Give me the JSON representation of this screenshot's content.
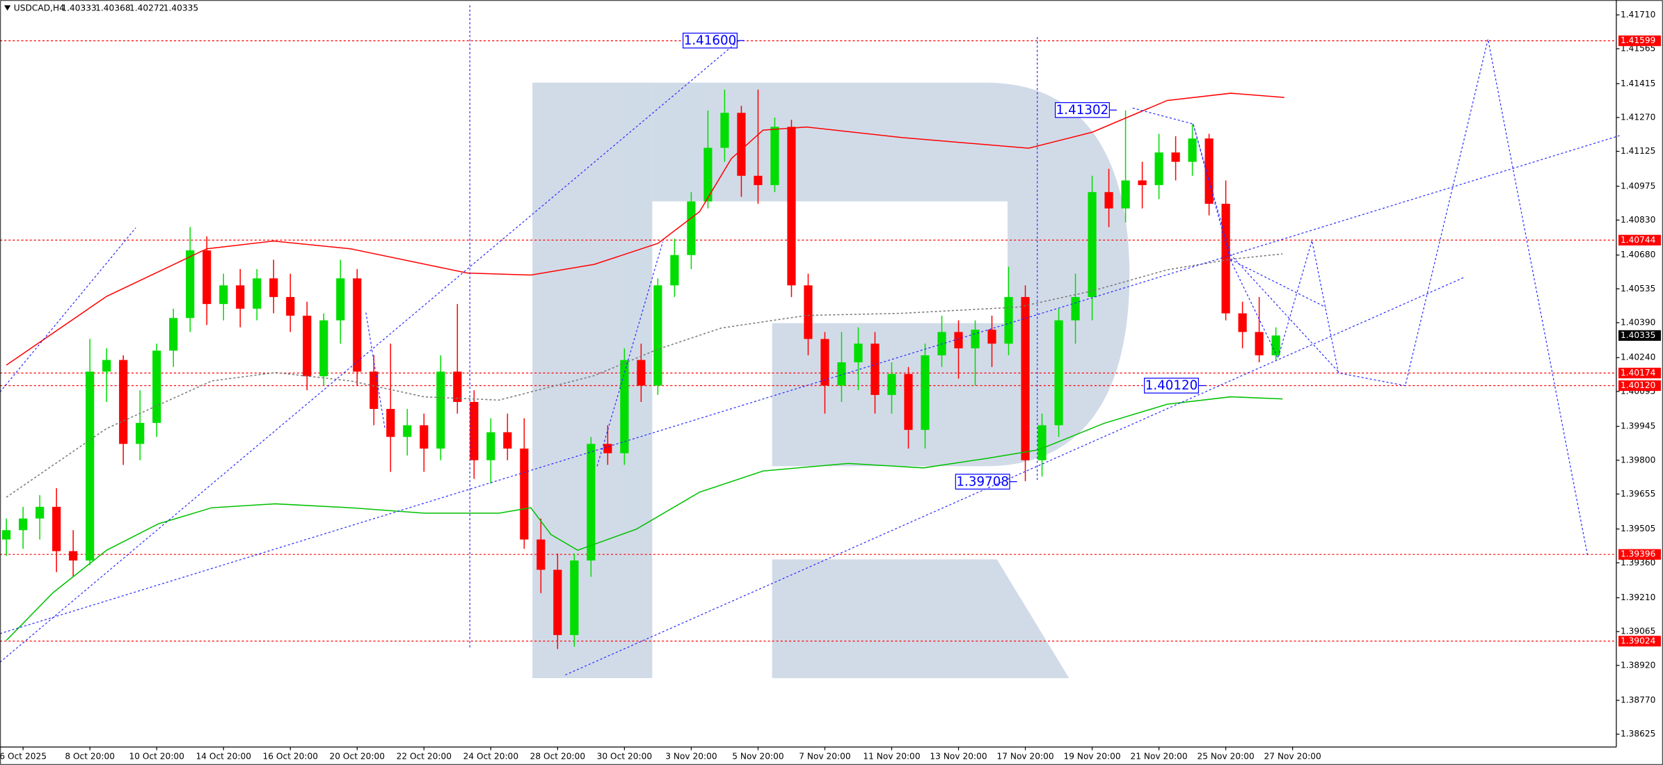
{
  "chart_data": {
    "type": "candlestick",
    "title": "USDCAD,H4",
    "ohlc": [
      1.40333,
      1.40368,
      1.40272,
      1.40335
    ],
    "up_color": "#00dd00",
    "down_color": "#ff0000",
    "ylim": [
      1.3857,
      1.41774
    ],
    "yticks": [
      {
        "value": 1.4171,
        "label": "1.41710"
      },
      1.41565,
      1.41415,
      {
        "value": 1.4127,
        "label": "1.41270"
      },
      1.41125,
      1.40975,
      {
        "value": 1.4083,
        "label": "1.40830"
      },
      {
        "value": 1.4068,
        "label": "1.40680"
      },
      1.40535,
      {
        "value": 1.4039,
        "label": "1.40390"
      },
      {
        "value": 1.4024,
        "label": "1.40240"
      },
      1.40095,
      1.39945,
      {
        "value": 1.398,
        "label": "1.39800"
      },
      1.39655,
      1.39505,
      {
        "value": 1.3936,
        "label": "1.39360"
      },
      {
        "value": 1.3921,
        "label": "1.39210"
      },
      1.39065,
      {
        "value": 1.3892,
        "label": "1.38920"
      },
      {
        "value": 1.3877,
        "label": "1.38770"
      },
      1.38625
    ],
    "xticks": [
      {
        "value": 1,
        "label": "6 Oct 2025"
      },
      {
        "value": 5,
        "label": "8 Oct 20:00"
      },
      {
        "value": 9,
        "label": "10 Oct 20:00"
      },
      {
        "value": 13,
        "label": "14 Oct 20:00"
      },
      {
        "value": 17,
        "label": "16 Oct 20:00"
      },
      {
        "value": 21,
        "label": "20 Oct 20:00"
      },
      {
        "value": 25,
        "label": "22 Oct 20:00"
      },
      {
        "value": 29,
        "label": "24 Oct 20:00"
      },
      {
        "value": 33,
        "label": "28 Oct 20:00"
      },
      {
        "value": 37,
        "label": "30 Oct 20:00"
      },
      {
        "value": 41,
        "label": "3 Nov 20:00"
      },
      {
        "value": 45,
        "label": "5 Nov 20:00"
      },
      {
        "value": 49,
        "label": "7 Nov 20:00"
      },
      {
        "value": 53,
        "label": "11 Nov 20:00"
      },
      {
        "value": 57,
        "label": "13 Nov 20:00"
      },
      {
        "value": 61,
        "label": "17 Nov 20:00"
      },
      {
        "value": 65,
        "label": "19 Nov 20:00"
      },
      {
        "value": 69,
        "label": "21 Nov 20:00"
      },
      {
        "value": 73,
        "label": "25 Nov 20:00"
      },
      {
        "value": 77,
        "label": "27 Nov 20:00"
      }
    ],
    "candles": [
      [
        1.3946,
        1.3955,
        1.3939,
        1.395
      ],
      [
        1.395,
        1.396,
        1.3942,
        1.3955
      ],
      [
        1.3955,
        1.3965,
        1.3946,
        1.396
      ],
      [
        1.396,
        1.3968,
        1.3932,
        1.3941
      ],
      [
        1.3941,
        1.395,
        1.393,
        1.3937
      ],
      [
        1.3937,
        1.4032,
        1.3935,
        1.4018
      ],
      [
        1.4018,
        1.4028,
        1.4005,
        1.4023
      ],
      [
        1.4023,
        1.4025,
        1.3978,
        1.3987
      ],
      [
        1.3987,
        1.401,
        1.398,
        1.3996
      ],
      [
        1.3996,
        1.403,
        1.399,
        1.4027
      ],
      [
        1.4027,
        1.4045,
        1.402,
        1.4041
      ],
      [
        1.4041,
        1.408,
        1.4035,
        1.407
      ],
      [
        1.407,
        1.4076,
        1.4038,
        1.4047
      ],
      [
        1.4047,
        1.406,
        1.404,
        1.4055
      ],
      [
        1.4055,
        1.4062,
        1.4037,
        1.4045
      ],
      [
        1.4045,
        1.4062,
        1.404,
        1.4058
      ],
      [
        1.4058,
        1.4066,
        1.4043,
        1.405
      ],
      [
        1.405,
        1.406,
        1.4035,
        1.4042
      ],
      [
        1.4042,
        1.4048,
        1.401,
        1.4016
      ],
      [
        1.4016,
        1.4043,
        1.4012,
        1.404
      ],
      [
        1.404,
        1.4066,
        1.403,
        1.4058
      ],
      [
        1.4058,
        1.4062,
        1.4012,
        1.4018
      ],
      [
        1.4018,
        1.4025,
        1.3995,
        1.4002
      ],
      [
        1.4002,
        1.403,
        1.3975,
        1.399
      ],
      [
        1.399,
        1.4002,
        1.3982,
        1.3995
      ],
      [
        1.3995,
        1.4,
        1.3975,
        1.3985
      ],
      [
        1.3985,
        1.4025,
        1.398,
        1.4018
      ],
      [
        1.4018,
        1.4047,
        1.4,
        1.4005
      ],
      [
        1.4005,
        1.401,
        1.3972,
        1.398
      ],
      [
        1.398,
        1.3998,
        1.397,
        1.3992
      ],
      [
        1.3992,
        1.4,
        1.398,
        1.3985
      ],
      [
        1.3985,
        1.3998,
        1.3942,
        1.3946
      ],
      [
        1.3946,
        1.3955,
        1.3923,
        1.3933
      ],
      [
        1.3933,
        1.394,
        1.3899,
        1.3905
      ],
      [
        1.3905,
        1.394,
        1.39,
        1.3937
      ],
      [
        1.3937,
        1.399,
        1.393,
        1.3987
      ],
      [
        1.3987,
        1.3995,
        1.3978,
        1.3983
      ],
      [
        1.3983,
        1.4028,
        1.3978,
        1.4023
      ],
      [
        1.4023,
        1.403,
        1.4005,
        1.4012
      ],
      [
        1.4012,
        1.4058,
        1.4008,
        1.4055
      ],
      [
        1.4055,
        1.4075,
        1.405,
        1.4068
      ],
      [
        1.4068,
        1.4095,
        1.4062,
        1.4091
      ],
      [
        1.4091,
        1.413,
        1.4088,
        1.4114
      ],
      [
        1.4114,
        1.4139,
        1.4108,
        1.4129
      ],
      [
        1.4129,
        1.4132,
        1.4093,
        1.4102
      ],
      [
        1.4102,
        1.4139,
        1.409,
        1.4098
      ],
      [
        1.4098,
        1.4127,
        1.4095,
        1.4123
      ],
      [
        1.4123,
        1.4126,
        1.405,
        1.4055
      ],
      [
        1.4055,
        1.406,
        1.4025,
        1.4032
      ],
      [
        1.4032,
        1.4035,
        1.4,
        1.4012
      ],
      [
        1.4012,
        1.4035,
        1.4005,
        1.4022
      ],
      [
        1.4022,
        1.4037,
        1.401,
        1.403
      ],
      [
        1.403,
        1.4035,
        1.4,
        1.4008
      ],
      [
        1.4008,
        1.4022,
        1.4,
        1.4017
      ],
      [
        1.4017,
        1.402,
        1.3985,
        1.3993
      ],
      [
        1.3993,
        1.403,
        1.3985,
        1.4025
      ],
      [
        1.4025,
        1.4042,
        1.402,
        1.4035
      ],
      [
        1.4035,
        1.404,
        1.4015,
        1.4028
      ],
      [
        1.4028,
        1.404,
        1.4012,
        1.4036
      ],
      [
        1.4036,
        1.4042,
        1.402,
        1.403
      ],
      [
        1.403,
        1.4063,
        1.4025,
        1.405
      ],
      [
        1.405,
        1.4055,
        1.3971,
        1.398
      ],
      [
        1.398,
        1.4,
        1.3973,
        1.3995
      ],
      [
        1.3995,
        1.4045,
        1.399,
        1.404
      ],
      [
        1.404,
        1.406,
        1.403,
        1.405
      ],
      [
        1.405,
        1.4102,
        1.404,
        1.4095
      ],
      [
        1.4095,
        1.4105,
        1.408,
        1.4088
      ],
      [
        1.4088,
        1.413,
        1.4082,
        1.41
      ],
      [
        1.41,
        1.4108,
        1.4088,
        1.4098
      ],
      [
        1.4098,
        1.412,
        1.4092,
        1.4112
      ],
      [
        1.4112,
        1.4119,
        1.41,
        1.4108
      ],
      [
        1.4108,
        1.4124,
        1.4102,
        1.4118
      ],
      [
        1.4118,
        1.412,
        1.4085,
        1.409
      ],
      [
        1.409,
        1.41,
        1.404,
        1.4043
      ],
      [
        1.4043,
        1.4048,
        1.4028,
        1.4035
      ],
      [
        1.4035,
        1.405,
        1.4022,
        1.4025
      ],
      [
        1.4025,
        1.4037,
        1.4023,
        1.40335
      ]
    ],
    "moving_averages": [
      {
        "color": "#ff0000",
        "dash": false,
        "x": [
          0,
          6,
          12,
          16,
          20.6,
          27.6,
          31.4,
          35.2,
          39,
          41.5,
          43.4,
          45.3,
          47.9,
          53.6,
          61.2,
          65,
          69.5,
          73.3,
          76.5
        ],
        "values": [
          1.40208,
          1.40503,
          1.40707,
          1.4074,
          1.40707,
          1.40603,
          1.40594,
          1.4064,
          1.4073,
          1.40866,
          1.41093,
          1.41216,
          1.41229,
          1.41184,
          1.41138,
          1.41207,
          1.41343,
          1.41374,
          1.41356
        ]
      },
      {
        "color": "#00c000",
        "dash": false,
        "x": [
          0,
          2.8,
          6,
          9.1,
          12.3,
          16.1,
          20.6,
          25,
          29.5,
          31.4,
          32.6,
          34.2,
          37.7,
          41.5,
          45.3,
          50.4,
          54.9,
          58.7,
          61.8,
          65.7,
          69.5,
          73.3,
          76.4
        ],
        "values": [
          1.39027,
          1.39232,
          1.39414,
          1.39527,
          1.39596,
          1.39613,
          1.39596,
          1.39573,
          1.39573,
          1.39596,
          1.39481,
          1.39414,
          1.39504,
          1.39663,
          1.39754,
          1.39786,
          1.39767,
          1.39808,
          1.39845,
          1.39958,
          1.4004,
          1.40072,
          1.40063
        ]
      },
      {
        "color": "#777777",
        "dash": true,
        "x": [
          0,
          6,
          12.3,
          16.1,
          20.6,
          25,
          29.5,
          35.2,
          39,
          42.8,
          47.9,
          53.6,
          60.6,
          65,
          69.5,
          73.3,
          76.4
        ],
        "values": [
          1.39641,
          1.39936,
          1.4014,
          1.40176,
          1.4014,
          1.40072,
          1.40058,
          1.40163,
          1.40276,
          1.40367,
          1.40421,
          1.4043,
          1.40457,
          1.40526,
          1.40617,
          1.40662,
          1.40685
        ]
      }
    ],
    "level_color": "#ff0000",
    "levels": [
      1.41599,
      1.40744,
      1.40174,
      {
        "value": 1.4012,
        "label": "1.40120"
      },
      1.39396,
      1.39024
    ],
    "last_price": 1.40335,
    "annotations": [
      {
        "value": 1.416,
        "label": "1.41600"
      },
      1.41302,
      {
        "value": 1.4012,
        "label": "1.40120"
      },
      1.39708
    ]
  }
}
